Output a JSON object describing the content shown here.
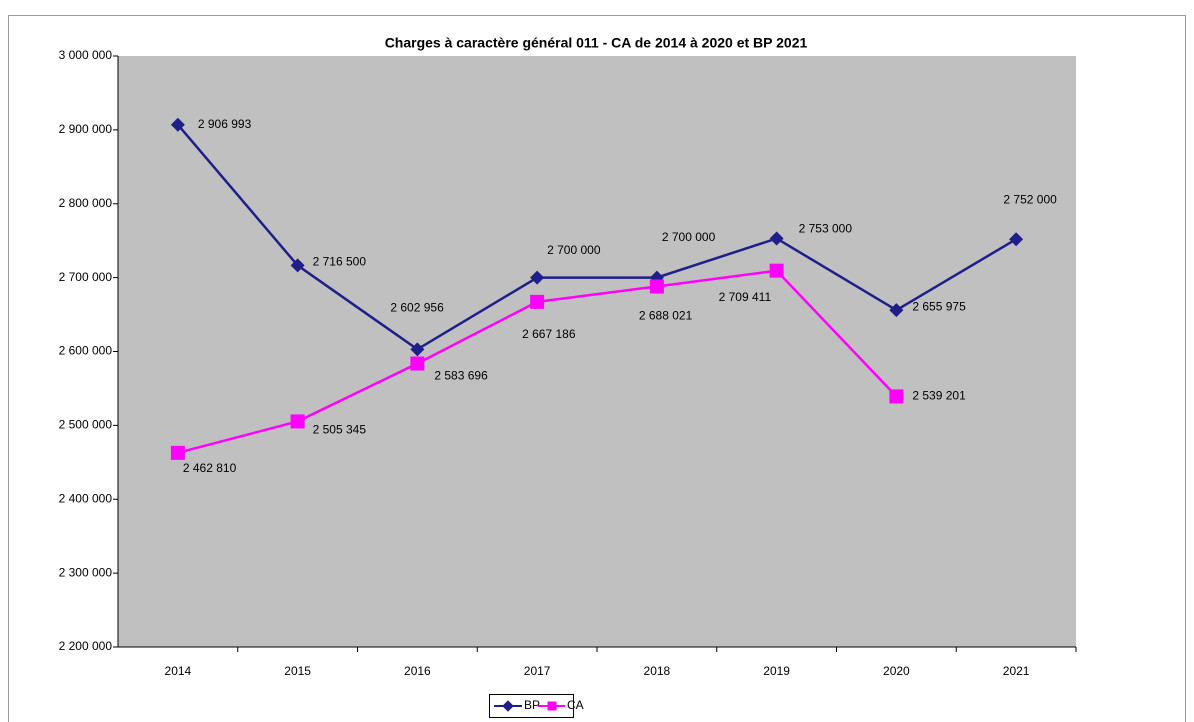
{
  "chart_data": {
    "type": "line",
    "title": "Charges à caractère général 011 - CA de 2014 à 2020 et BP 2021",
    "categories": [
      "2014",
      "2015",
      "2016",
      "2017",
      "2018",
      "2019",
      "2020",
      "2021"
    ],
    "series": [
      {
        "name": "BP",
        "color": "#1f1f8a",
        "marker": "diamond",
        "values": [
          2906993,
          2716500,
          2602956,
          2700000,
          2700000,
          2753000,
          2655975,
          2752000
        ],
        "value_labels": [
          "2 906 993",
          "2 716 500",
          "2 602 956",
          "2 700 000",
          "2 700 000",
          "2 753 000",
          "2 655 975",
          "2 752 000"
        ]
      },
      {
        "name": "CA",
        "color": "#ff00ff",
        "marker": "square",
        "values": [
          2462810,
          2505345,
          2583696,
          2667186,
          2688021,
          2709411,
          2539201,
          null
        ],
        "value_labels": [
          "2 462 810",
          "2 505 345",
          "2 583 696",
          "2 667 186",
          "2 688 021",
          "2 709 411",
          "2 539 201",
          null
        ]
      }
    ],
    "ylim": [
      2200000,
      3000000
    ],
    "yticks": [
      {
        "value": 2200000,
        "label": "2 200 000"
      },
      {
        "value": 2300000,
        "label": "2 300 000"
      },
      {
        "value": 2400000,
        "label": "2 400 000"
      },
      {
        "value": 2500000,
        "label": "2 500 000"
      },
      {
        "value": 2600000,
        "label": "2 600 000"
      },
      {
        "value": 2700000,
        "label": "2 700 000"
      },
      {
        "value": 2800000,
        "label": "2 800 000"
      },
      {
        "value": 2900000,
        "label": "2 900 000"
      },
      {
        "value": 3000000,
        "label": "3 000 000"
      }
    ],
    "legend": "bottom"
  }
}
